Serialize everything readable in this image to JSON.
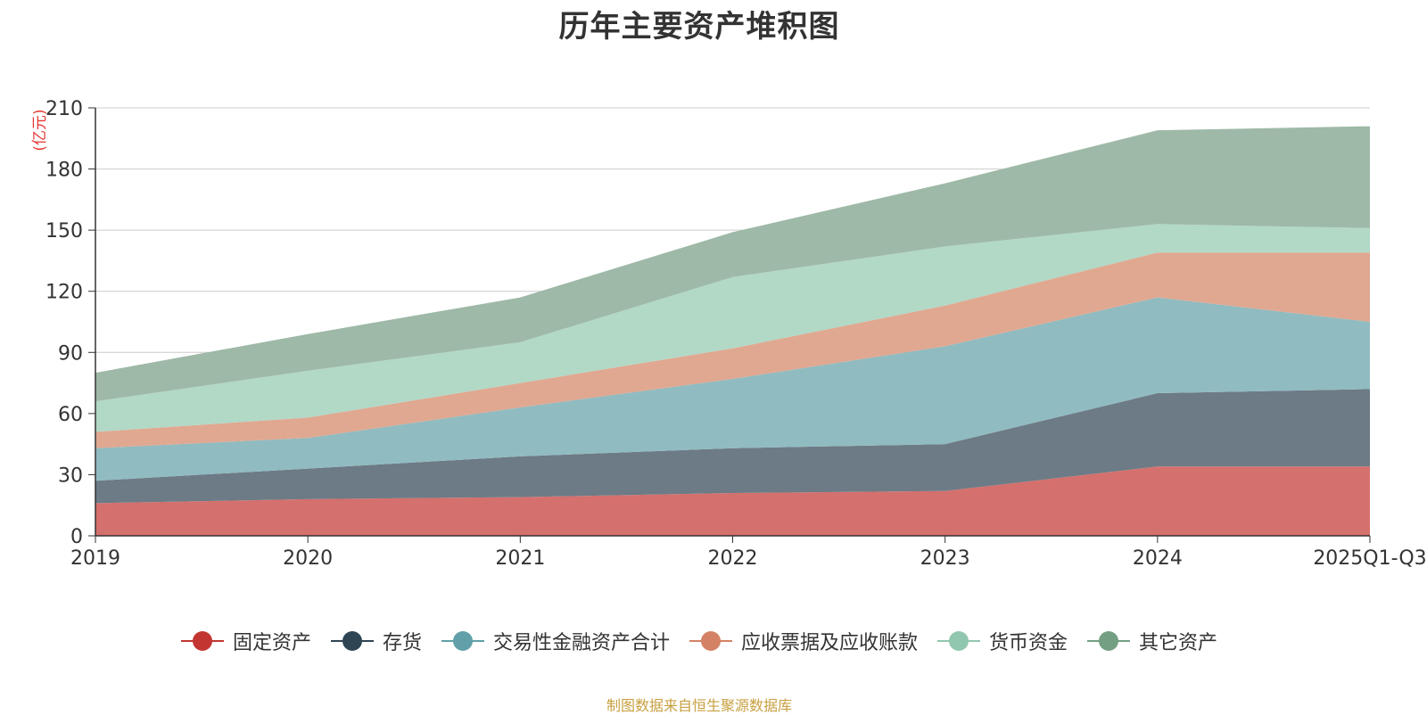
{
  "chart_data": {
    "type": "area",
    "stacked": true,
    "title": "历年主要资产堆积图",
    "ylabel": "(亿元)",
    "xlabel": "",
    "ylim": [
      0,
      210
    ],
    "yticks": [
      0,
      30,
      60,
      90,
      120,
      150,
      180,
      210
    ],
    "categories": [
      "2019",
      "2020",
      "2021",
      "2022",
      "2023",
      "2024",
      "2025Q1-Q3"
    ],
    "grid": true,
    "legend_position": "bottom",
    "series": [
      {
        "name": "固定资产",
        "color": "#c23531",
        "fill": "#d4706d",
        "values": [
          16,
          18,
          19,
          21,
          22,
          34,
          34
        ]
      },
      {
        "name": "存货",
        "color": "#2f4554",
        "fill": "#6d7b86",
        "values": [
          11,
          15,
          20,
          22,
          23,
          36,
          38
        ]
      },
      {
        "name": "交易性金融资产合计",
        "color": "#61a0a8",
        "fill": "#90bbc1",
        "values": [
          16,
          15,
          24,
          34,
          48,
          47,
          33
        ]
      },
      {
        "name": "应收票据及应收账款",
        "color": "#d48265",
        "fill": "#e0a891",
        "values": [
          8,
          10,
          12,
          15,
          20,
          22,
          34
        ]
      },
      {
        "name": "货币资金",
        "color": "#91c7ae",
        "fill": "#b2d8c6",
        "values": [
          15,
          23,
          20,
          35,
          29,
          14,
          12
        ]
      },
      {
        "name": "其它资产",
        "color": "#749f83",
        "fill": "#9eb9a7",
        "values": [
          14,
          18,
          22,
          22,
          31,
          46,
          50
        ]
      }
    ]
  },
  "footer": {
    "source": "制图数据来自恒生聚源数据库"
  }
}
